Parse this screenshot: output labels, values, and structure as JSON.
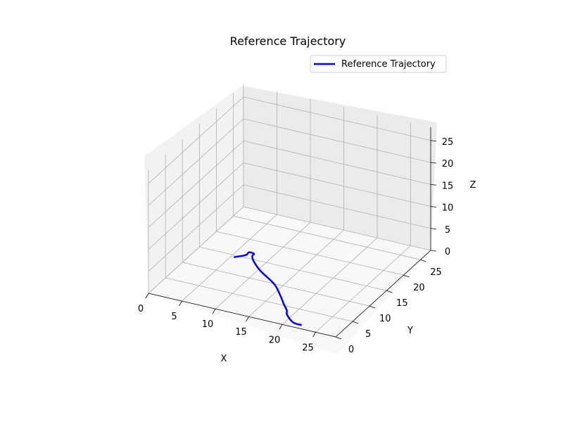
{
  "chart_data": {
    "type": "line",
    "projection": "3d",
    "title": "Reference Trajectory",
    "xlabel": "X",
    "ylabel": "Y",
    "zlabel": "Z",
    "xlim": [
      0,
      28
    ],
    "ylim": [
      0,
      28
    ],
    "zlim": [
      0,
      28
    ],
    "xticks": [
      "0",
      "5",
      "10",
      "15",
      "20",
      "25"
    ],
    "yticks": [
      "0",
      "5",
      "10",
      "15",
      "20",
      "25"
    ],
    "zticks": [
      "0",
      "5",
      "10",
      "15",
      "20",
      "25"
    ],
    "grid": true,
    "legend": {
      "position": "top-right",
      "entries": [
        "Reference Trajectory"
      ]
    },
    "series": [
      {
        "name": "Reference Trajectory",
        "color": "#0000ff",
        "x": [
          5.5,
          6.6,
          6.6,
          7.4,
          7.5,
          8.4,
          10.4,
          13.8,
          16.1,
          17.4,
          18.7,
          19.3,
          21.0,
          22.3
        ],
        "y": [
          14.5,
          15.7,
          16.6,
          16.5,
          15.8,
          14.5,
          12.5,
          9.9,
          7.2,
          5.5,
          3.9,
          2.8,
          1.2,
          1.0
        ],
        "z": [
          0,
          0,
          0,
          0,
          0,
          0,
          0,
          0,
          0,
          0,
          0,
          0,
          0,
          0
        ]
      }
    ]
  }
}
